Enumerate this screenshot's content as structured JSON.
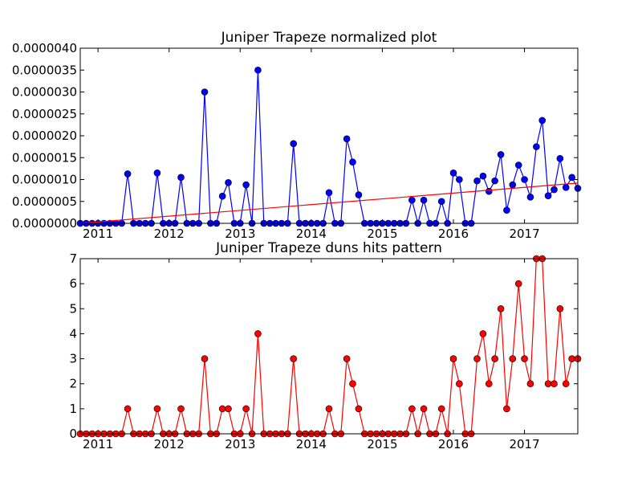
{
  "chart_data": [
    {
      "type": "line",
      "title": "Juniper Trapeze normalized plot",
      "x": [
        2010.75,
        2010.833,
        2010.917,
        2011.0,
        2011.083,
        2011.167,
        2011.25,
        2011.333,
        2011.417,
        2011.5,
        2011.583,
        2011.667,
        2011.75,
        2011.833,
        2011.917,
        2012.0,
        2012.083,
        2012.167,
        2012.25,
        2012.333,
        2012.417,
        2012.5,
        2012.583,
        2012.667,
        2012.75,
        2012.833,
        2012.917,
        2013.0,
        2013.083,
        2013.167,
        2013.25,
        2013.333,
        2013.417,
        2013.5,
        2013.583,
        2013.667,
        2013.75,
        2013.833,
        2013.917,
        2014.0,
        2014.083,
        2014.167,
        2014.25,
        2014.333,
        2014.417,
        2014.5,
        2014.583,
        2014.667,
        2014.75,
        2014.833,
        2014.917,
        2015.0,
        2015.083,
        2015.167,
        2015.25,
        2015.333,
        2015.417,
        2015.5,
        2015.583,
        2015.667,
        2015.75,
        2015.833,
        2015.917,
        2016.0,
        2016.083,
        2016.167,
        2016.25,
        2016.333,
        2016.417,
        2016.5,
        2016.583,
        2016.667,
        2016.75,
        2016.833,
        2016.917,
        2017.0,
        2017.083,
        2017.167,
        2017.25,
        2017.333,
        2017.417,
        2017.5,
        2017.583,
        2017.667,
        2017.75
      ],
      "series": [
        {
          "color": "#0000ff",
          "marker": true,
          "values": [
            0,
            0,
            0,
            0,
            0,
            0,
            0,
            0,
            1.13e-06,
            0,
            0,
            0,
            0,
            1.15e-06,
            0,
            0,
            0,
            1.05e-06,
            0,
            0,
            0,
            3e-06,
            0,
            0,
            6.2e-07,
            9.3e-07,
            0,
            0,
            8.8e-07,
            0,
            3.5e-06,
            0,
            0,
            0,
            0,
            0,
            1.82e-06,
            0,
            0,
            0,
            0,
            0,
            7e-07,
            0,
            0,
            1.93e-06,
            1.4e-06,
            6.5e-07,
            0,
            0,
            0,
            0,
            0,
            0,
            0,
            0,
            5.3e-07,
            0,
            5.3e-07,
            0,
            0,
            5e-07,
            0,
            1.15e-06,
            1e-06,
            0,
            0,
            9.7e-07,
            1.08e-06,
            7.3e-07,
            9.7e-07,
            1.57e-06,
            3e-07,
            8.8e-07,
            1.33e-06,
            1e-06,
            6e-07,
            1.75e-06,
            2.35e-06,
            6.3e-07,
            7.7e-07,
            1.48e-06,
            8.2e-07,
            1.05e-06,
            8e-07
          ]
        },
        {
          "color": "#ff0000",
          "marker": false,
          "x": [
            2010.75,
            2017.75
          ],
          "values": [
            0,
            9.2e-07
          ]
        }
      ],
      "xlim": [
        2010.75,
        2017.75
      ],
      "xticks": [
        2011,
        2012,
        2013,
        2014,
        2015,
        2016,
        2017
      ],
      "ylim": [
        0,
        4e-06
      ],
      "yticks": [
        {
          "value": 0,
          "label": "0.0000000"
        },
        {
          "value": 5e-07,
          "label": "0.0000005"
        },
        {
          "value": 1e-06,
          "label": "0.0000010"
        },
        {
          "value": 1.5e-06,
          "label": "0.0000015"
        },
        {
          "value": 2e-06,
          "label": "0.0000020"
        },
        {
          "value": 2.5e-06,
          "label": "0.0000025"
        },
        {
          "value": 3e-06,
          "label": "0.0000030"
        },
        {
          "value": 3.5e-06,
          "label": "0.0000035"
        },
        {
          "value": 4e-06,
          "label": "0.0000040"
        }
      ]
    },
    {
      "type": "line",
      "title": "Juniper Trapeze duns hits pattern",
      "x": [
        2010.75,
        2010.833,
        2010.917,
        2011.0,
        2011.083,
        2011.167,
        2011.25,
        2011.333,
        2011.417,
        2011.5,
        2011.583,
        2011.667,
        2011.75,
        2011.833,
        2011.917,
        2012.0,
        2012.083,
        2012.167,
        2012.25,
        2012.333,
        2012.417,
        2012.5,
        2012.583,
        2012.667,
        2012.75,
        2012.833,
        2012.917,
        2013.0,
        2013.083,
        2013.167,
        2013.25,
        2013.333,
        2013.417,
        2013.5,
        2013.583,
        2013.667,
        2013.75,
        2013.833,
        2013.917,
        2014.0,
        2014.083,
        2014.167,
        2014.25,
        2014.333,
        2014.417,
        2014.5,
        2014.583,
        2014.667,
        2014.75,
        2014.833,
        2014.917,
        2015.0,
        2015.083,
        2015.167,
        2015.25,
        2015.333,
        2015.417,
        2015.5,
        2015.583,
        2015.667,
        2015.75,
        2015.833,
        2015.917,
        2016.0,
        2016.083,
        2016.167,
        2016.25,
        2016.333,
        2016.417,
        2016.5,
        2016.583,
        2016.667,
        2016.75,
        2016.833,
        2016.917,
        2017.0,
        2017.083,
        2017.167,
        2017.25,
        2017.333,
        2017.417,
        2017.5,
        2017.583,
        2017.667,
        2017.75
      ],
      "series": [
        {
          "color": "#ff0000",
          "marker": true,
          "values": [
            0,
            0,
            0,
            0,
            0,
            0,
            0,
            0,
            1,
            0,
            0,
            0,
            0,
            1,
            0,
            0,
            0,
            1,
            0,
            0,
            0,
            3,
            0,
            0,
            1,
            1,
            0,
            0,
            1,
            0,
            4,
            0,
            0,
            0,
            0,
            0,
            3,
            0,
            0,
            0,
            0,
            0,
            1,
            0,
            0,
            3,
            2,
            1,
            0,
            0,
            0,
            0,
            0,
            0,
            0,
            0,
            1,
            0,
            1,
            0,
            0,
            1,
            0,
            3,
            2,
            0,
            0,
            3,
            4,
            2,
            3,
            5,
            1,
            3,
            6,
            3,
            2,
            7,
            7,
            2,
            2,
            5,
            2,
            3,
            3
          ]
        }
      ],
      "xlim": [
        2010.75,
        2017.75
      ],
      "xticks": [
        2011,
        2012,
        2013,
        2014,
        2015,
        2016,
        2017
      ],
      "ylim": [
        0,
        7
      ],
      "yticks": [
        0,
        1,
        2,
        3,
        4,
        5,
        6,
        7
      ]
    }
  ]
}
